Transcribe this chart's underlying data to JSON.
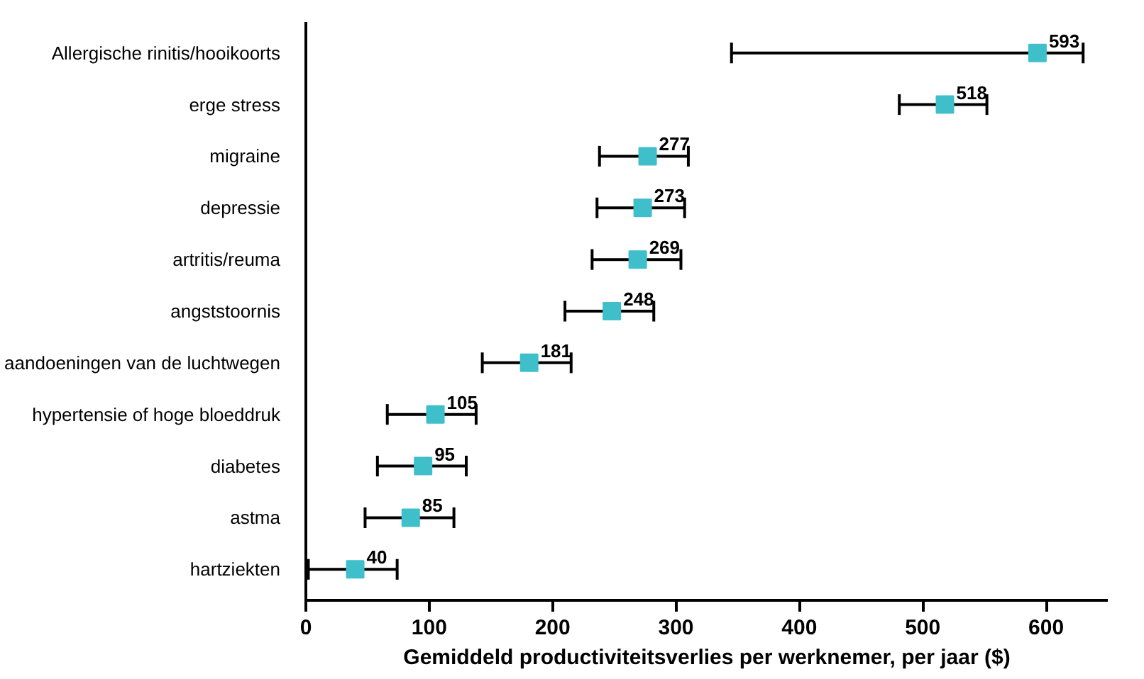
{
  "chart_data": {
    "type": "scatter",
    "orientation": "horizontal",
    "xlabel": "Gemiddeld productiviteitsverlies per werknemer, per jaar ($)",
    "categories": [
      "Allergische rinitis/hooikoorts",
      "erge stress",
      "migraine",
      "depressie",
      "artritis/reuma",
      "angststoornis",
      "aandoeningen van de luchtwegen",
      "hypertensie of hoge bloeddruk",
      "diabetes",
      "astma",
      "hartziekten"
    ],
    "values": [
      593,
      518,
      277,
      273,
      269,
      248,
      181,
      105,
      95,
      85,
      40
    ],
    "errors": [
      [
        345,
        630
      ],
      [
        481,
        552
      ],
      [
        238,
        310
      ],
      [
        236,
        307
      ],
      [
        232,
        304
      ],
      [
        210,
        282
      ],
      [
        143,
        215
      ],
      [
        66,
        138
      ],
      [
        58,
        130
      ],
      [
        48,
        120
      ],
      [
        2,
        74
      ]
    ],
    "color": "#3fbfca",
    "marker": "square",
    "data_labels": true,
    "grid": false,
    "xlim": [
      0,
      650
    ],
    "xticks": [
      0,
      100,
      200,
      300,
      400,
      500,
      600
    ]
  }
}
